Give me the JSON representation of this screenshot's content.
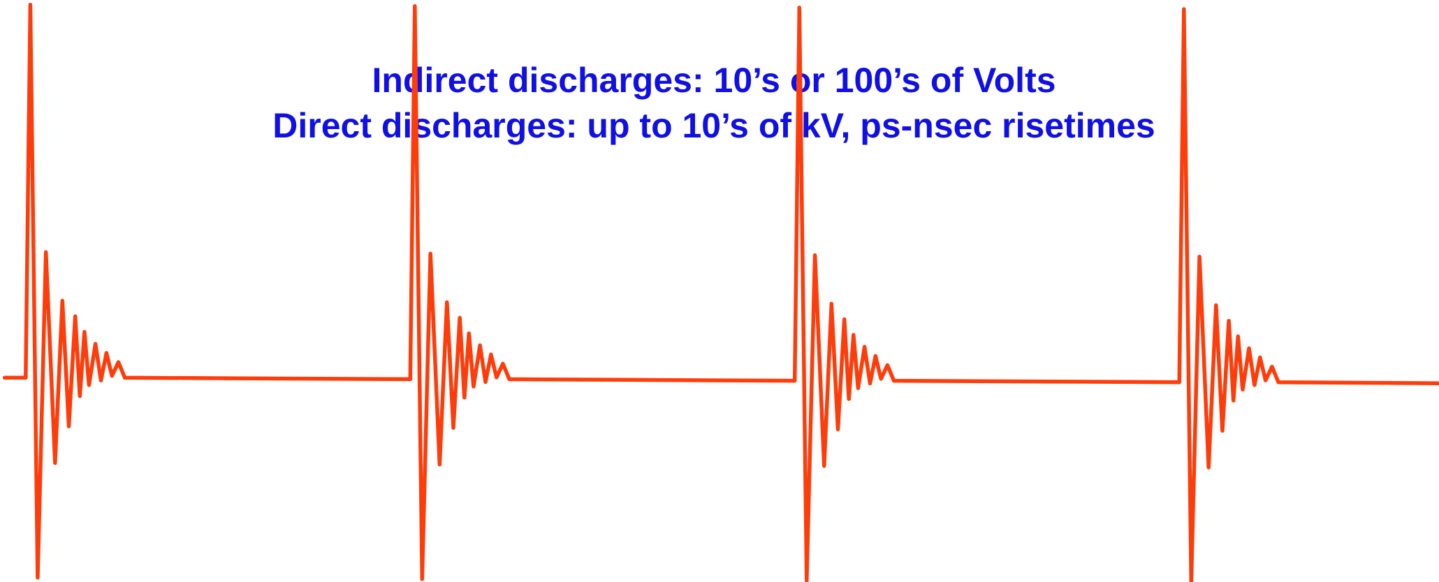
{
  "text": {
    "line1": "Indirect discharges: 10’s or 100’s of Volts",
    "line2": "Direct discharges: up to 10’s of kV, ps-nsec risetimes"
  }
}
